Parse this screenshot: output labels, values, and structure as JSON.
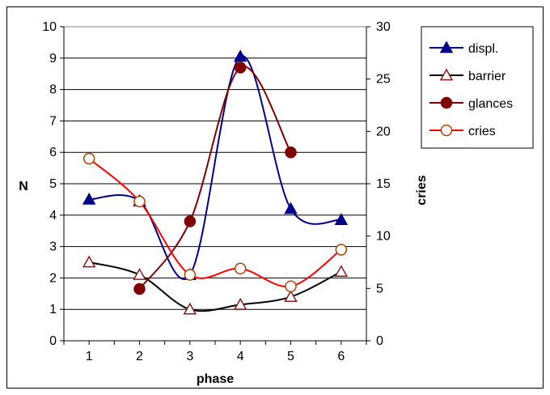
{
  "chart_data": {
    "type": "line",
    "x": [
      1,
      2,
      3,
      4,
      5,
      6
    ],
    "xlabel": "phase",
    "ylabel": "N",
    "y2label": "cries",
    "ylim": [
      0,
      10
    ],
    "y2lim": [
      0,
      30
    ],
    "xticks": [
      "1",
      "2",
      "3",
      "4",
      "5",
      "6"
    ],
    "yticks": [
      "0",
      "1",
      "2",
      "3",
      "4",
      "5",
      "6",
      "7",
      "8",
      "9",
      "10"
    ],
    "y2ticks": [
      "0",
      "5",
      "10",
      "15",
      "20",
      "25",
      "30"
    ],
    "grid": "horizontal",
    "legend_position": "top-right",
    "series": [
      {
        "name": "displ.",
        "axis": "left",
        "marker": "filled-triangle",
        "color": "#00008B",
        "values": [
          4.5,
          4.45,
          2.1,
          9.05,
          4.2,
          3.85
        ]
      },
      {
        "name": "barrier",
        "axis": "left",
        "marker": "open-triangle",
        "color": "#000000",
        "marker_color": "#8B1A1A",
        "values": [
          2.5,
          2.1,
          1.0,
          1.15,
          1.4,
          2.2
        ]
      },
      {
        "name": "glances",
        "axis": "left",
        "marker": "filled-circle",
        "color": "#800000",
        "values": [
          null,
          1.65,
          3.8,
          8.7,
          6.0,
          null
        ]
      },
      {
        "name": "cries",
        "axis": "right",
        "marker": "open-circle",
        "color": "#FF0000",
        "marker_color": "#B04000",
        "values": [
          17.4,
          13.3,
          6.3,
          6.9,
          5.2,
          8.7
        ]
      }
    ]
  }
}
